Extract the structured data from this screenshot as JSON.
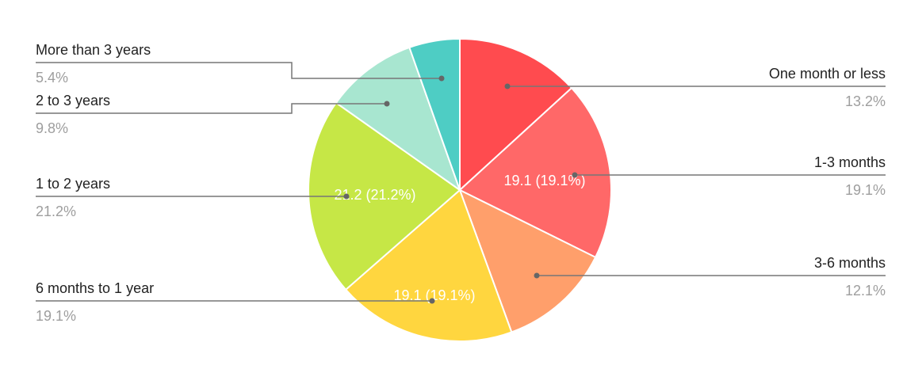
{
  "chart_data": {
    "type": "pie",
    "title": "",
    "start": "top, clockwise",
    "slices": [
      {
        "label": "One month or less",
        "value": 13.2,
        "pct_label": "13.2%",
        "color": "#ff4b4f",
        "inner_label": ""
      },
      {
        "label": "1-3 months",
        "value": 19.1,
        "pct_label": "19.1%",
        "color": "#ff6868",
        "inner_label": "19.1 (19.1%)"
      },
      {
        "label": "3-6 months",
        "value": 12.1,
        "pct_label": "12.1%",
        "color": "#ff9f6b",
        "inner_label": ""
      },
      {
        "label": "6 months to 1 year",
        "value": 19.1,
        "pct_label": "19.1%",
        "color": "#ffd63f",
        "inner_label": "19.1 (19.1%)"
      },
      {
        "label": "1 to 2 years",
        "value": 21.2,
        "pct_label": "21.2%",
        "color": "#c6e746",
        "inner_label": "21.2 (21.2%)"
      },
      {
        "label": "2 to 3 years",
        "value": 9.8,
        "pct_label": "9.8%",
        "color": "#a8e6d0",
        "inner_label": ""
      },
      {
        "label": "More than 3 years",
        "value": 5.4,
        "pct_label": "5.4%",
        "color": "#4ecdc4",
        "inner_label": ""
      }
    ]
  }
}
